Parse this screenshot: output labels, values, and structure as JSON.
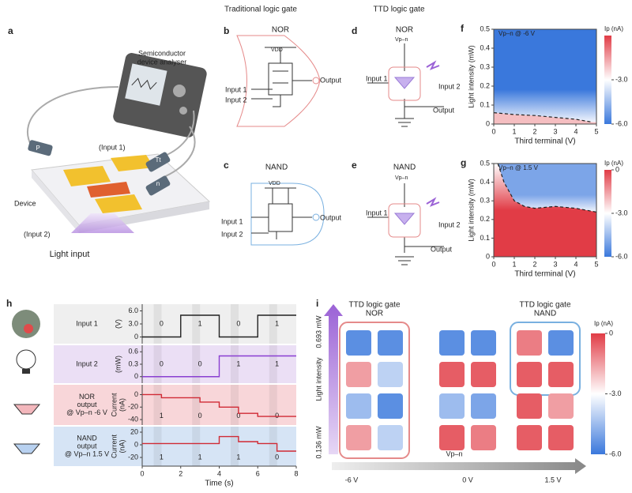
{
  "headers": {
    "traditional": "Traditional logic gate",
    "ttd": "TTD logic gate"
  },
  "panel_a": {
    "label": "a",
    "analyser": [
      "Semiconductor",
      "device analyser"
    ],
    "input1": "(Input 1)",
    "device": "Device",
    "input2": "(Input 2)",
    "light": "Light input",
    "probes": [
      "P",
      "Tt",
      "n"
    ]
  },
  "panel_b": {
    "label": "b",
    "gate": "NOR",
    "vdd": "VDD",
    "inputs": [
      "Input 1",
      "Input 2"
    ],
    "output": "Output"
  },
  "panel_c": {
    "label": "c",
    "gate": "NAND",
    "vdd": "VDD",
    "inputs": [
      "Input 1",
      "Input 2"
    ],
    "output": "Output"
  },
  "panel_d": {
    "label": "d",
    "gate": "NOR",
    "vpn": "Vp–n",
    "inputs": [
      "Input 1",
      "Input 2"
    ],
    "output": "Output"
  },
  "panel_e": {
    "label": "e",
    "gate": "NAND",
    "vpn": "Vp–n",
    "inputs": [
      "Input 1",
      "Input 2"
    ],
    "output": "Output"
  },
  "chart_data": [
    {
      "type": "heatmap",
      "label": "f",
      "annotation": "Vp–n @ -6 V",
      "xlabel": "Third terminal (V)",
      "ylabel": "Light intensity (mW)",
      "xlim": [
        0,
        5
      ],
      "ylim": [
        0,
        0.5
      ],
      "xticks": [
        0,
        1,
        2,
        3,
        4,
        5
      ],
      "yticks": [
        0,
        0.1,
        0.2,
        0.3,
        0.4,
        0.5
      ],
      "colorbar_label": "Ip (nA)",
      "clim": [
        -6,
        0
      ],
      "cticks": [
        {
          "value": -3,
          "label": "-3.0"
        },
        {
          "value": -6,
          "label": "-6.0"
        }
      ],
      "value_above": -6,
      "value_below": -2,
      "boundary": {
        "x": [
          0,
          1,
          2,
          3,
          4,
          4.8
        ],
        "y": [
          0.06,
          0.05,
          0.045,
          0.035,
          0.025,
          0.01
        ]
      }
    },
    {
      "type": "heatmap",
      "label": "g",
      "annotation": "Vp–n @ 1.5 V",
      "xlabel": "Third terminal (V)",
      "ylabel": "Light intensity (mW)",
      "xlim": [
        0,
        5
      ],
      "ylim": [
        0,
        0.5
      ],
      "xticks": [
        0,
        1,
        2,
        3,
        4,
        5
      ],
      "yticks": [
        0,
        0.1,
        0.2,
        0.3,
        0.4,
        0.5
      ],
      "colorbar_label": "Ip (nA)",
      "clim": [
        -6,
        0
      ],
      "cticks": [
        0,
        {
          "value": -3,
          "label": "-3.0"
        },
        {
          "value": -6,
          "label": "-6.0"
        }
      ],
      "value_above": -5,
      "value_below": 0,
      "boundary": {
        "x": [
          0.2,
          0.5,
          1,
          1.5,
          2,
          3,
          4,
          5
        ],
        "y": [
          0.5,
          0.4,
          0.3,
          0.27,
          0.26,
          0.27,
          0.26,
          0.24
        ]
      }
    },
    {
      "type": "step",
      "label": "h",
      "xlabel": "Time (s)",
      "xlim": [
        0,
        8
      ],
      "xticks": [
        0,
        2,
        4,
        6,
        8
      ],
      "rows": [
        {
          "name": [
            "Input 1"
          ],
          "ylabel": [
            "(V)"
          ],
          "ylim": [
            -1,
            7
          ],
          "yticks": [
            0,
            {
              "value": 3,
              "label": "3.0"
            },
            {
              "value": 6,
              "label": "6.0"
            }
          ],
          "color": "#222222",
          "x": [
            0,
            2,
            2,
            4,
            4,
            6,
            6,
            8
          ],
          "y": [
            0,
            0,
            5,
            5,
            0,
            0,
            5,
            5
          ],
          "digits": [
            "0",
            "1",
            "0",
            "1"
          ]
        },
        {
          "name": [
            "Input 2"
          ],
          "ylabel": [
            "(mW)"
          ],
          "ylim": [
            -0.1,
            0.7
          ],
          "yticks": [
            0,
            0.3,
            0.6
          ],
          "color": "#8a3fd1",
          "x": [
            0,
            4,
            4,
            8
          ],
          "y": [
            0,
            0,
            0.5,
            0.5
          ],
          "digits": [
            "0",
            "0",
            "1",
            "1"
          ]
        },
        {
          "name": [
            "NOR",
            "output",
            "@ Vp–n -6 V"
          ],
          "ylabel": [
            "Current",
            "(nA)"
          ],
          "ylim": [
            -45,
            12
          ],
          "yticks": [
            0,
            -20,
            -40
          ],
          "color": "#d02a35",
          "x": [
            0,
            1,
            1,
            3,
            3,
            4,
            4,
            5,
            5,
            6,
            6,
            8
          ],
          "y": [
            0,
            0,
            -5,
            -5,
            -12,
            -12,
            -20,
            -20,
            -30,
            -30,
            -35,
            -35
          ],
          "digits": [
            "1",
            "0",
            "0",
            "0"
          ]
        },
        {
          "name": [
            "NAND",
            "output",
            "@ Vp–n 1.5 V"
          ],
          "ylabel": [
            "Current",
            "(nA)"
          ],
          "ylim": [
            -30,
            25
          ],
          "yticks": [
            20,
            0,
            -20
          ],
          "color": "#d02a35",
          "x": [
            0,
            4,
            4,
            5,
            5,
            6,
            6,
            7,
            7,
            8
          ],
          "y": [
            2,
            2,
            13,
            13,
            5,
            5,
            2,
            2,
            -10,
            -10
          ],
          "digits": [
            "1",
            "1",
            "1",
            "0"
          ]
        }
      ]
    },
    {
      "type": "matrix",
      "label": "i",
      "yaxis": "Light intensity",
      "ymax_label": "0.693 mW",
      "ymin_label": "0.136 mW",
      "xaxis": "Vp–n",
      "colorbar_label": "Ip (nA)",
      "clim": [
        -6,
        0
      ],
      "cticks": [
        0,
        {
          "value": -3,
          "label": "-3.0"
        },
        {
          "value": -6,
          "label": "-6.0"
        }
      ],
      "groups": [
        {
          "title": [
            "TTD logic gate",
            "NOR"
          ],
          "xlabel": "-6 V",
          "values": [
            [
              -5.5,
              -5.5
            ],
            [
              -1.5,
              -4
            ],
            [
              -4.5,
              -5.5
            ],
            [
              -1.5,
              -4
            ]
          ]
        },
        {
          "xlabel": "0 V",
          "values": [
            [
              -5.5,
              -5.5
            ],
            [
              -0.5,
              -0.5
            ],
            [
              -4.5,
              -5
            ],
            [
              -0.5,
              -1
            ]
          ]
        },
        {
          "title": [
            "TTD logic gate",
            "NAND"
          ],
          "xlabel": "1.5 V",
          "values": [
            [
              -1,
              -5.5
            ],
            [
              -0.5,
              -0.5
            ],
            [
              -0.5,
              -1.5
            ],
            [
              -0.5,
              -0.5
            ]
          ]
        }
      ]
    }
  ]
}
